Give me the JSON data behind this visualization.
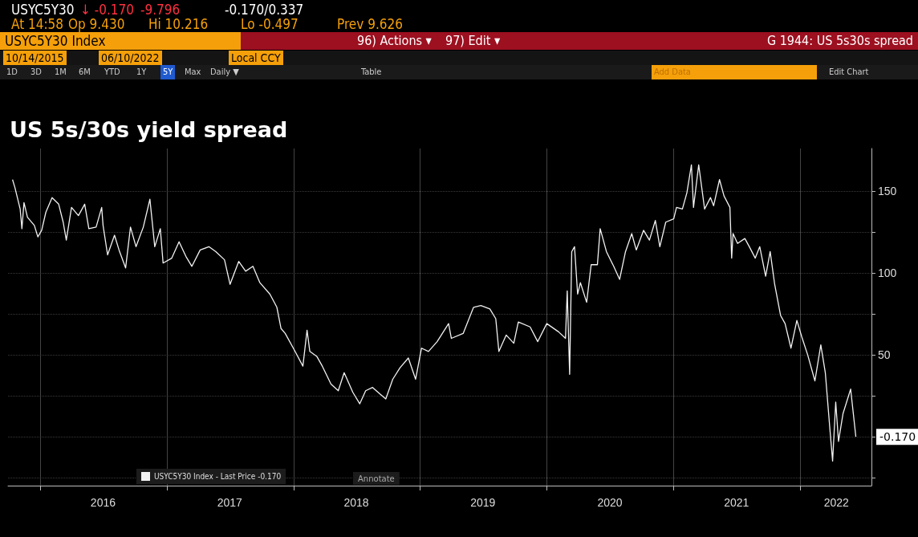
{
  "chart_data": {
    "type": "line",
    "title": "US 5s/30s yield spread",
    "annotations": [
      "USYC5Y30",
      "↓ -0.170",
      "-9.796",
      "-0.170/0.337",
      "At 14:58",
      "Op 9.430",
      "Hi 10.216",
      "Lo -0.497",
      "Prev 9.626",
      "USYC5Y30 Index",
      "96) Actions ▾",
      "97) Edit ▾",
      "G 1944: US 5s30s spread",
      "10/14/2015",
      "06/10/2022",
      "Local CCY",
      "1D",
      "3D",
      "1M",
      "6M",
      "YTD",
      "1Y",
      "5Y",
      "Max",
      "Daily ▼",
      "Table",
      "Add Data",
      "Edit Chart",
      "Annotate",
      {
        "text": "-0.170",
        "x": "2022-06-10",
        "y": -0.17
      }
    ],
    "x": [
      "2015-10-14",
      "2015-10-21",
      "2015-11-05",
      "2015-11-10",
      "2015-11-16",
      "2015-11-26",
      "2015-12-16",
      "2015-12-26",
      "2016-01-06",
      "2016-01-18",
      "2016-02-05",
      "2016-02-24",
      "2016-03-08",
      "2016-03-17",
      "2016-04-01",
      "2016-04-21",
      "2016-05-09",
      "2016-05-21",
      "2016-06-11",
      "2016-06-27",
      "2016-07-01",
      "2016-07-14",
      "2016-08-03",
      "2016-08-16",
      "2016-09-04",
      "2016-09-18",
      "2016-10-04",
      "2016-10-25",
      "2016-11-13",
      "2016-11-27",
      "2016-12-13",
      "2016-12-21",
      "2017-01-15",
      "2017-02-05",
      "2017-02-25",
      "2017-03-14",
      "2017-04-07",
      "2017-05-02",
      "2017-05-22",
      "2017-06-16",
      "2017-07-02",
      "2017-07-27",
      "2017-08-16",
      "2017-09-06",
      "2017-09-26",
      "2017-10-25",
      "2017-11-14",
      "2017-11-26",
      "2017-12-08",
      "2018-01-03",
      "2018-01-28",
      "2018-02-09",
      "2018-02-17",
      "2018-03-09",
      "2018-03-25",
      "2018-04-19",
      "2018-05-10",
      "2018-05-27",
      "2018-06-21",
      "2018-07-11",
      "2018-07-28",
      "2018-08-17",
      "2018-09-07",
      "2018-09-24",
      "2018-10-14",
      "2018-11-04",
      "2018-11-28",
      "2018-12-19",
      "2019-01-05",
      "2019-01-25",
      "2019-02-19",
      "2019-03-24",
      "2019-04-01",
      "2019-05-05",
      "2019-06-04",
      "2019-06-25",
      "2019-07-21",
      "2019-08-07",
      "2019-08-16",
      "2019-09-06",
      "2019-09-28",
      "2019-10-11",
      "2019-11-14",
      "2019-12-06",
      "2020-01-01",
      "2020-02-04",
      "2020-02-24",
      "2020-02-29",
      "2020-03-07",
      "2020-03-13",
      "2020-03-21",
      "2020-03-30",
      "2020-04-07",
      "2020-04-25",
      "2020-05-08",
      "2020-05-26",
      "2020-06-03",
      "2020-06-21",
      "2020-07-12",
      "2020-07-29",
      "2020-08-15",
      "2020-09-02",
      "2020-09-15",
      "2020-10-06",
      "2020-10-23",
      "2020-11-09",
      "2020-11-22",
      "2020-12-09",
      "2021-01-01",
      "2021-01-09",
      "2021-01-26",
      "2021-02-08",
      "2021-02-21",
      "2021-02-27",
      "2021-03-14",
      "2021-03-31",
      "2021-04-17",
      "2021-04-26",
      "2021-05-13",
      "2021-05-26",
      "2021-06-12",
      "2021-06-17",
      "2021-06-21",
      "2021-07-04",
      "2021-07-25",
      "2021-08-07",
      "2021-08-24",
      "2021-09-06",
      "2021-09-23",
      "2021-10-06",
      "2021-10-19",
      "2021-11-05",
      "2021-11-18",
      "2021-12-05",
      "2021-12-22",
      "2022-01-05",
      "2022-01-22",
      "2022-02-12",
      "2022-03-01",
      "2022-03-14",
      "2022-03-27",
      "2022-04-04",
      "2022-04-13",
      "2022-04-21",
      "2022-05-04",
      "2022-05-26",
      "2022-06-10"
    ],
    "series": [
      {
        "name": "USYC5Y30 Index - Last Price -0.170",
        "color": "#f2f2f2",
        "values": [
          157,
          152,
          139,
          127,
          143,
          134,
          129,
          122,
          126,
          137,
          146,
          142,
          131,
          120,
          140,
          135,
          142,
          127,
          128,
          140,
          129,
          111,
          123,
          114,
          103,
          128,
          116,
          128,
          145,
          116,
          127,
          106,
          109,
          119,
          110,
          104,
          114,
          116,
          113,
          108,
          93,
          107,
          101,
          104,
          94,
          87,
          79,
          66,
          63,
          53,
          43,
          65,
          52,
          49,
          43,
          32,
          28,
          39,
          27,
          20,
          28,
          30,
          26,
          23,
          35,
          42,
          48,
          35,
          54,
          52,
          58,
          69,
          60,
          63,
          79,
          80,
          78,
          72,
          52,
          62,
          57,
          70,
          67,
          58,
          69,
          64,
          60,
          89,
          38,
          113,
          116,
          87,
          94,
          82,
          105,
          105,
          127,
          113,
          104,
          96,
          113,
          124,
          114,
          126,
          120,
          132,
          116,
          131,
          133,
          140,
          139,
          149,
          166,
          140,
          166,
          139,
          146,
          141,
          157,
          147,
          140,
          109,
          124,
          118,
          121,
          116,
          109,
          116,
          98,
          113,
          93,
          74,
          69,
          54,
          71,
          61,
          50,
          34,
          56,
          39,
          5,
          -15,
          21,
          -3,
          14,
          29,
          -0.17
        ]
      }
    ],
    "xlim": [
      "2015-10-01",
      "2022-07-25"
    ],
    "xticks": [
      {
        "value": "2016-01-01",
        "label": null
      },
      {
        "value": "2016-07-01",
        "label": "2016"
      },
      {
        "value": "2017-01-01",
        "label": null
      },
      {
        "value": "2017-07-01",
        "label": "2017"
      },
      {
        "value": "2018-01-01",
        "label": null
      },
      {
        "value": "2018-07-01",
        "label": "2018"
      },
      {
        "value": "2019-01-01",
        "label": null
      },
      {
        "value": "2019-07-01",
        "label": "2019"
      },
      {
        "value": "2020-01-01",
        "label": null
      },
      {
        "value": "2020-07-01",
        "label": "2020"
      },
      {
        "value": "2021-01-01",
        "label": null
      },
      {
        "value": "2021-07-01",
        "label": "2021"
      },
      {
        "value": "2022-01-01",
        "label": null
      },
      {
        "value": "2022-04-15",
        "label": "2022"
      }
    ],
    "ylim": [
      -30,
      176
    ],
    "yticks": [
      {
        "value": -25,
        "label": null
      },
      {
        "value": 0,
        "label": null
      },
      {
        "value": 25,
        "label": null
      },
      50,
      {
        "value": 75,
        "label": null
      },
      100,
      {
        "value": 125,
        "label": null
      },
      150
    ],
    "grid": true,
    "legend": "bottom left",
    "line_style": "solid",
    "marker": "none"
  }
}
